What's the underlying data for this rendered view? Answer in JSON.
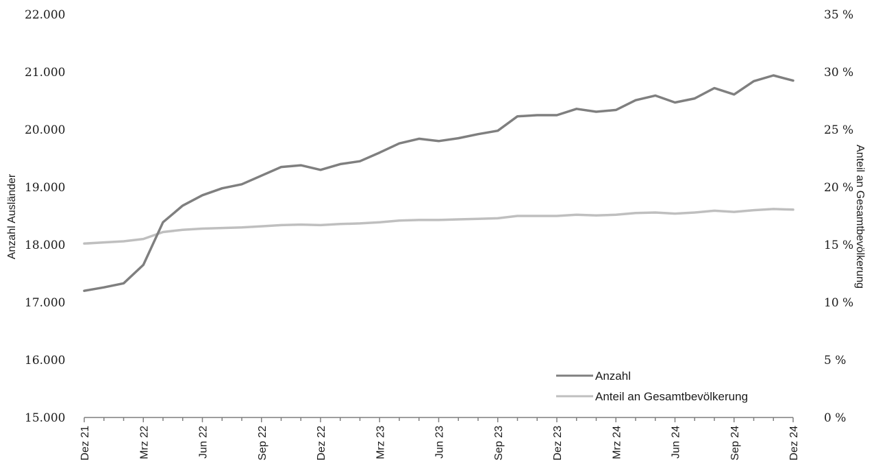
{
  "chart_data": {
    "type": "line",
    "x": [
      "Dez 21",
      "Jan 22",
      "Feb 22",
      "Mrz 22",
      "Apr 22",
      "Mai 22",
      "Jun 22",
      "Jul 22",
      "Aug 22",
      "Sep 22",
      "Okt 22",
      "Nov 22",
      "Dez 22",
      "Jan 23",
      "Feb 23",
      "Mrz 23",
      "Apr 23",
      "Mai 23",
      "Jun 23",
      "Jul 23",
      "Aug 23",
      "Sep 23",
      "Okt 23",
      "Nov 23",
      "Dez 23",
      "Jan 24",
      "Feb 24",
      "Mrz 24",
      "Apr 24",
      "Mai 24",
      "Jun 24",
      "Jul 24",
      "Aug 24",
      "Sep 24",
      "Okt 24",
      "Nov 24",
      "Dez 24"
    ],
    "x_tick_labels": [
      "Dez 21",
      "Mrz 22",
      "Jun 22",
      "Sep 22",
      "Dez 22",
      "Mrz 23",
      "Jun 23",
      "Sep 23",
      "Dez 23",
      "Mrz 24",
      "Jun 24",
      "Sep 24",
      "Dez 24"
    ],
    "ylabel": "Anzahl Ausländer",
    "y2label": "Anteil an Gesamtbevölkerung",
    "ylim": [
      15000,
      22000
    ],
    "y2lim": [
      0,
      35
    ],
    "y_tick_labels": [
      "15.000",
      "16.000",
      "17.000",
      "18.000",
      "19.000",
      "20.000",
      "21.000",
      "22.000"
    ],
    "y2_tick_labels": [
      "0 %",
      "5 %",
      "10 %",
      "15 %",
      "20 %",
      "25 %",
      "30 %",
      "35 %"
    ],
    "legend_position": "bottom-right",
    "grid": false,
    "series": [
      {
        "name": "Anzahl",
        "axis": "left",
        "color": "#7f7f7f",
        "values": [
          17200,
          17260,
          17330,
          17650,
          18390,
          18680,
          18860,
          18980,
          19050,
          19200,
          19350,
          19380,
          19300,
          19400,
          19450,
          19600,
          19760,
          19840,
          19800,
          19850,
          19920,
          19980,
          20230,
          20250,
          20250,
          20360,
          20310,
          20340,
          20510,
          20590,
          20470,
          20540,
          20720,
          20610,
          20840,
          20940,
          20850
        ]
      },
      {
        "name": "Anteil an Gesamtbevölkerung",
        "axis": "right",
        "color": "#bfbfbf",
        "values": [
          15.1,
          15.2,
          15.3,
          15.5,
          16.1,
          16.3,
          16.4,
          16.45,
          16.5,
          16.6,
          16.7,
          16.75,
          16.7,
          16.8,
          16.85,
          16.95,
          17.1,
          17.15,
          17.15,
          17.2,
          17.25,
          17.3,
          17.5,
          17.5,
          17.5,
          17.6,
          17.55,
          17.6,
          17.75,
          17.8,
          17.7,
          17.8,
          17.95,
          17.85,
          18.0,
          18.1,
          18.05
        ]
      }
    ]
  }
}
